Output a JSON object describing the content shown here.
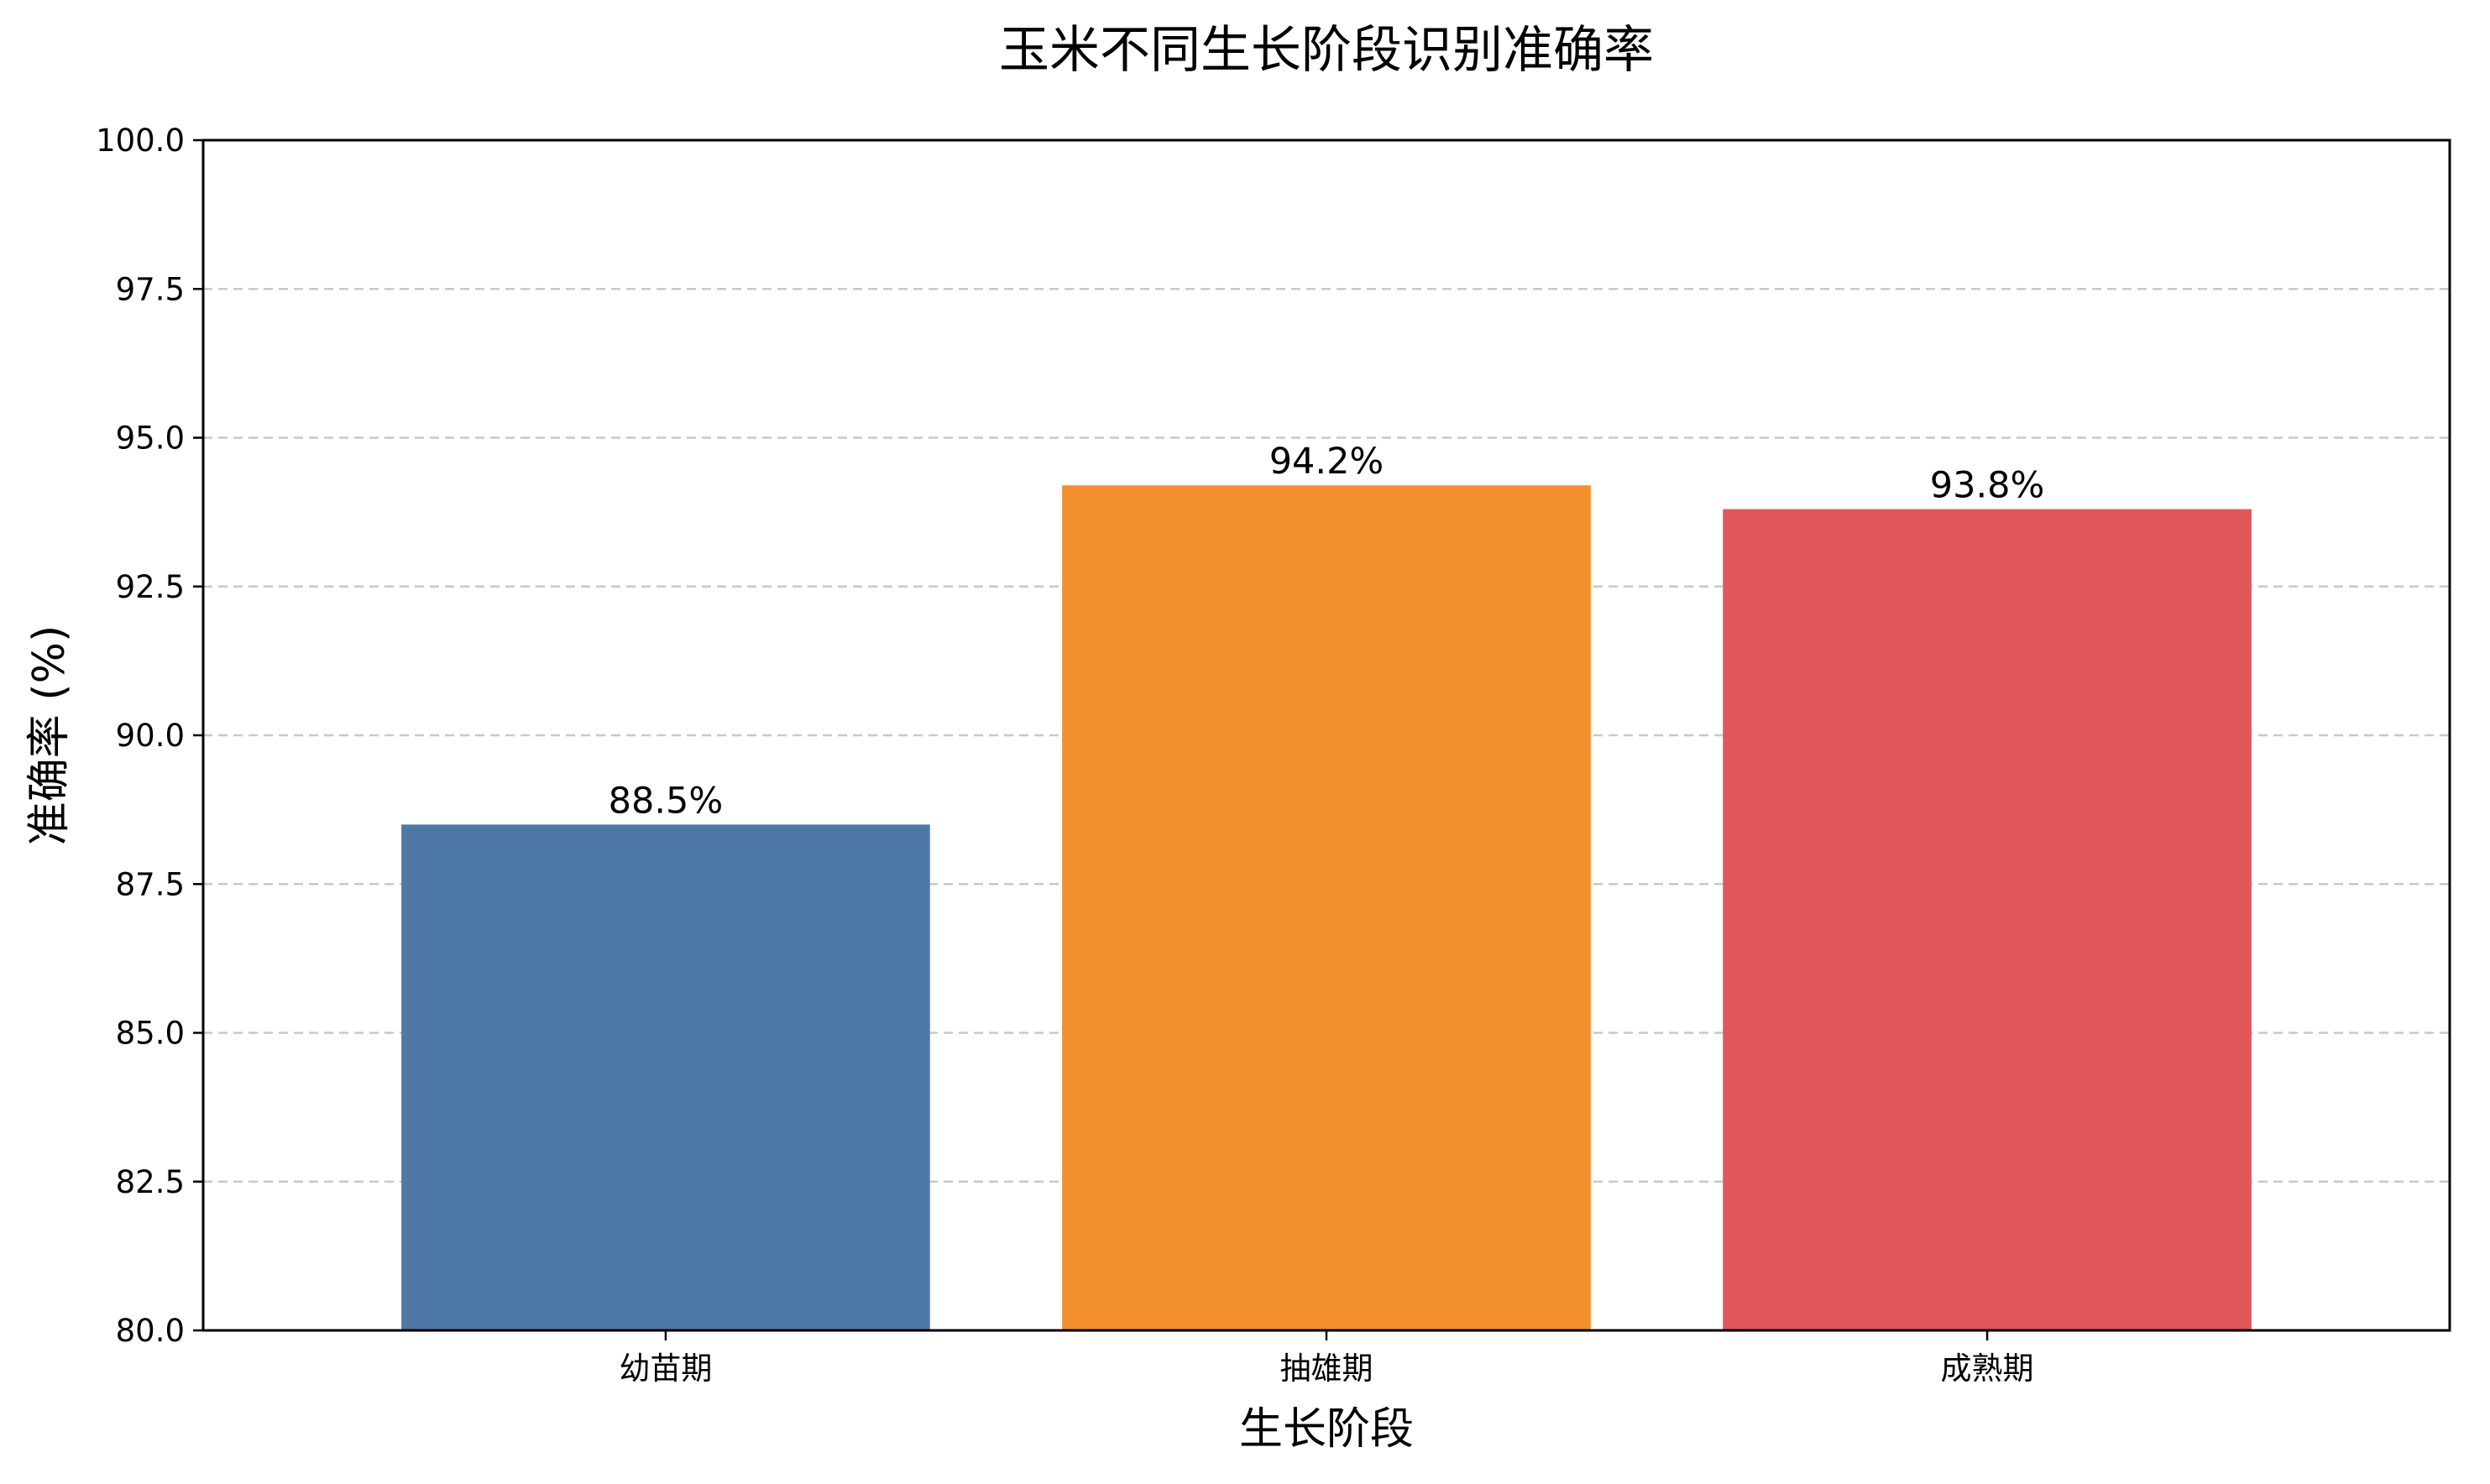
{
  "chart_data": {
    "type": "bar",
    "title": "玉米不同生长阶段识别准确率",
    "xlabel": "生长阶段",
    "ylabel": "准确率 (%)",
    "categories": [
      "幼苗期",
      "抽雄期",
      "成熟期"
    ],
    "values": [
      88.5,
      94.2,
      93.8
    ],
    "value_labels": [
      "88.5%",
      "94.2%",
      "93.8%"
    ],
    "colors": [
      "#4e79a7",
      "#f28e2b",
      "#e15759"
    ],
    "ylim": [
      80,
      100
    ],
    "yticks": [
      80.0,
      82.5,
      85.0,
      87.5,
      90.0,
      92.5,
      95.0,
      97.5,
      100.0
    ],
    "ytick_labels": [
      "80.0",
      "82.5",
      "85.0",
      "87.5",
      "90.0",
      "92.5",
      "95.0",
      "97.5",
      "100.0"
    ],
    "grid": "y-dashed",
    "legend": "none"
  }
}
